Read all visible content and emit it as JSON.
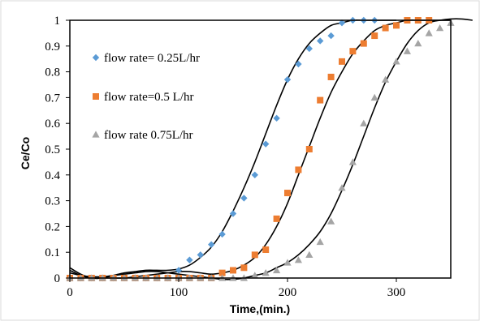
{
  "chart_data": {
    "type": "scatter",
    "xlabel": "Time,(min.)",
    "ylabel": "Ce/Co",
    "xlim": [
      0,
      350
    ],
    "ylim": [
      0,
      1
    ],
    "xticks": [
      "0",
      "100",
      "200",
      "300"
    ],
    "yticks": [
      "0",
      "0.1",
      "0.2",
      "0.3",
      "0.4",
      "0.5",
      "0.6",
      "0.7",
      "0.8",
      "0.9",
      "1"
    ],
    "legend_position": "top-left",
    "series": [
      {
        "name": "flow rate= 0.25L/hr",
        "marker": "diamond",
        "color": "#5B9BD5",
        "x": [
          0,
          10,
          20,
          30,
          40,
          50,
          60,
          70,
          80,
          90,
          100,
          110,
          120,
          130,
          140,
          150,
          160,
          170,
          180,
          190,
          200,
          210,
          220,
          230,
          240,
          250,
          260,
          270,
          280
        ],
        "y": [
          0,
          0,
          0,
          0,
          0,
          0,
          0,
          0,
          0,
          0,
          0.03,
          0.07,
          0.09,
          0.13,
          0.17,
          0.25,
          0.31,
          0.4,
          0.52,
          0.62,
          0.77,
          0.83,
          0.89,
          0.92,
          0.94,
          0.99,
          1.0,
          1.0,
          1.0
        ]
      },
      {
        "name": "flow rate=0.5 L/hr",
        "marker": "square",
        "color": "#ED7D31",
        "x": [
          0,
          10,
          20,
          30,
          40,
          50,
          60,
          70,
          80,
          90,
          100,
          110,
          120,
          130,
          140,
          150,
          160,
          170,
          180,
          190,
          200,
          210,
          220,
          230,
          240,
          250,
          260,
          270,
          280,
          290,
          300,
          310,
          320,
          330
        ],
        "y": [
          0,
          0,
          0,
          0,
          0,
          0,
          0,
          0,
          0,
          0,
          0,
          0,
          0,
          0,
          0.02,
          0.03,
          0.04,
          0.09,
          0.11,
          0.23,
          0.33,
          0.42,
          0.5,
          0.69,
          0.78,
          0.84,
          0.88,
          0.91,
          0.94,
          0.97,
          0.98,
          1.0,
          1.0,
          1.0
        ]
      },
      {
        "name": "flow rate 0.75L/hr",
        "marker": "triangle",
        "color": "#A5A5A5",
        "x": [
          0,
          10,
          20,
          30,
          40,
          50,
          60,
          70,
          80,
          90,
          100,
          110,
          120,
          130,
          140,
          150,
          160,
          170,
          180,
          190,
          200,
          210,
          220,
          230,
          240,
          250,
          260,
          270,
          280,
          290,
          300,
          310,
          320,
          330,
          340,
          350
        ],
        "y": [
          0,
          0,
          0,
          0,
          0,
          0,
          0,
          0,
          0,
          0,
          0,
          0,
          0,
          0,
          0,
          0,
          0,
          0.01,
          0.02,
          0.03,
          0.06,
          0.07,
          0.09,
          0.14,
          0.22,
          0.35,
          0.45,
          0.6,
          0.7,
          0.77,
          0.84,
          0.88,
          0.91,
          0.95,
          0.97,
          0.99
        ]
      }
    ],
    "fit_curves": [
      {
        "x": [
          0,
          10,
          20,
          30,
          40,
          50,
          60,
          70,
          80,
          90,
          100,
          110,
          120,
          130,
          140,
          150,
          160,
          170,
          180,
          190,
          200,
          210,
          220,
          230,
          240,
          250,
          260,
          270,
          280,
          290,
          300
        ],
        "y": [
          0.03,
          0.01,
          0.0,
          0.0,
          0.01,
          0.02,
          0.025,
          0.03,
          0.03,
          0.03,
          0.035,
          0.05,
          0.08,
          0.12,
          0.18,
          0.26,
          0.35,
          0.45,
          0.56,
          0.67,
          0.77,
          0.85,
          0.91,
          0.95,
          0.98,
          0.99,
          1.0,
          1.0,
          1.0,
          1.0,
          1.0
        ]
      },
      {
        "x": [
          0,
          10,
          20,
          30,
          40,
          50,
          60,
          70,
          80,
          90,
          100,
          110,
          120,
          130,
          140,
          150,
          160,
          170,
          180,
          190,
          200,
          210,
          220,
          230,
          240,
          250,
          260,
          270,
          280,
          290,
          300,
          310,
          320,
          330,
          340,
          350
        ],
        "y": [
          0.04,
          0.015,
          0.0,
          0.0,
          0.0,
          0.0,
          0.005,
          0.01,
          0.015,
          0.02,
          0.025,
          0.025,
          0.02,
          0.015,
          0.02,
          0.03,
          0.05,
          0.08,
          0.13,
          0.2,
          0.29,
          0.4,
          0.51,
          0.62,
          0.72,
          0.8,
          0.87,
          0.92,
          0.96,
          0.98,
          0.99,
          1.0,
          1.0,
          1.0,
          1.0,
          1.0
        ]
      },
      {
        "x": [
          0,
          10,
          20,
          30,
          40,
          50,
          60,
          70,
          80,
          90,
          100,
          110,
          120,
          130,
          140,
          150,
          160,
          170,
          180,
          190,
          200,
          210,
          220,
          230,
          240,
          250,
          260,
          270,
          280,
          290,
          300,
          310,
          320,
          330,
          340,
          350,
          360,
          370
        ],
        "y": [
          0.02,
          0.01,
          0.005,
          0.005,
          0.01,
          0.015,
          0.02,
          0.025,
          0.025,
          0.02,
          0.015,
          0.01,
          0.005,
          0.0,
          -0.005,
          -0.005,
          0.0,
          0.01,
          0.02,
          0.04,
          0.06,
          0.09,
          0.13,
          0.18,
          0.25,
          0.34,
          0.44,
          0.55,
          0.66,
          0.76,
          0.84,
          0.91,
          0.96,
          0.99,
          1.0,
          1.005,
          1.005,
          1.0
        ]
      }
    ]
  }
}
